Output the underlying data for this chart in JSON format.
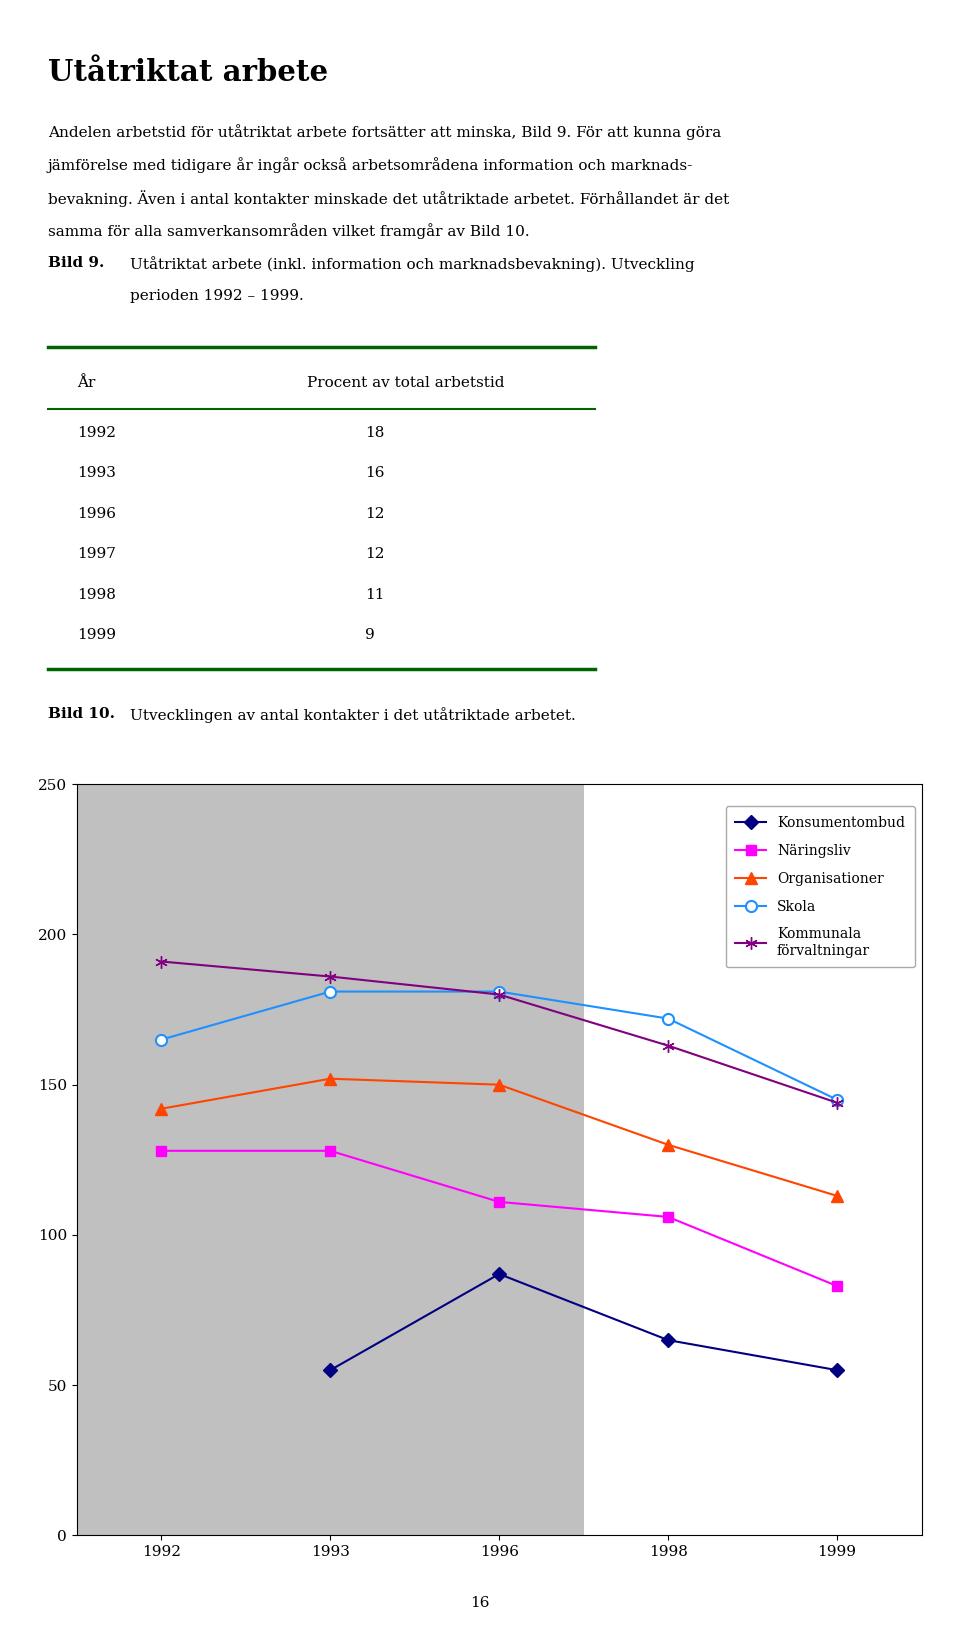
{
  "title": "Utåtriktat arbete",
  "paragraph_line1": "Andelen arbetstid för utåtriktat arbete fortsätter att minska, Bild 9. För att kunna göra",
  "paragraph_line2": "jämförelse med tidigare år ingår också arbetsområdena information och marknads-",
  "paragraph_line3": "bevakning. Även i antal kontakter minskade det utåtriktade arbetet. Förhållandet är det",
  "paragraph_line4": "samma för alla samverkansområden vilket framgår av Bild 10.",
  "bild9_label": "Bild 9.",
  "bild9_text_line1": "Utåtriktat arbete (inkl. information och marknadsbevakning). Utveckling",
  "bild9_text_line2": "perioden 1992 – 1999.",
  "table_col1": "År",
  "table_col2": "Procent av total arbetstid",
  "table_years": [
    "1992",
    "1993",
    "1996",
    "1997",
    "1998",
    "1999"
  ],
  "table_values": [
    18,
    16,
    12,
    12,
    11,
    9
  ],
  "bild10_label": "Bild 10.",
  "bild10_text": "Utvecklingen av antal kontakter i det utåtriktade arbetet.",
  "chart_years": [
    1992,
    1993,
    1996,
    1998,
    1999
  ],
  "konsumentombud": [
    null,
    55,
    87,
    65,
    55
  ],
  "naringsliv": [
    128,
    128,
    111,
    106,
    83
  ],
  "organisationer": [
    142,
    152,
    150,
    130,
    113
  ],
  "skola": [
    165,
    181,
    181,
    172,
    145
  ],
  "kommunala": [
    191,
    186,
    180,
    163,
    144
  ],
  "konsumentombud_color": "#000080",
  "naringsliv_color": "#FF00FF",
  "organisationer_color": "#FF4500",
  "skola_color": "#1E90FF",
  "kommunala_color": "#800080",
  "table_line_color": "#006400",
  "chart_bg_color": "#C0C0C0",
  "page_number": "16",
  "ylim": [
    0,
    250
  ],
  "yticks": [
    0,
    50,
    100,
    150,
    200,
    250
  ]
}
